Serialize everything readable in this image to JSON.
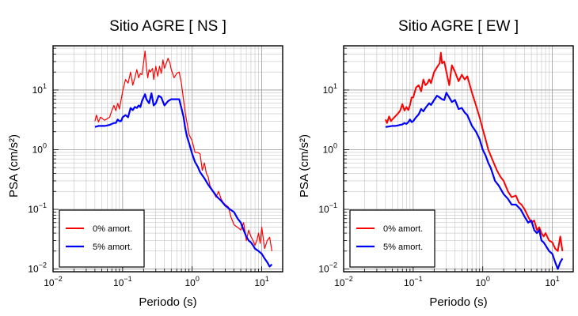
{
  "chart_data": [
    {
      "type": "line",
      "title": "Sitio AGRE [ NS ]",
      "xlabel": "Periodo (s)",
      "ylabel": "PSA (cm/s²)",
      "xscale": "log",
      "yscale": "log",
      "xlim": [
        0.01,
        20
      ],
      "ylim": [
        0.009,
        55
      ],
      "grid": true,
      "legend": "bottom-left",
      "xticks": [
        {
          "v": 0.01,
          "b": "10",
          "e": "−2"
        },
        {
          "v": 0.1,
          "b": "10",
          "e": "−1"
        },
        {
          "v": 1,
          "b": "10",
          "e": "0"
        },
        {
          "v": 10,
          "b": "10",
          "e": "1"
        }
      ],
      "yticks": [
        {
          "v": 0.01,
          "b": "10",
          "e": "−2"
        },
        {
          "v": 0.1,
          "b": "10",
          "e": "−1"
        },
        {
          "v": 1,
          "b": "10",
          "e": "0"
        },
        {
          "v": 10,
          "b": "10",
          "e": "1"
        }
      ],
      "series": [
        {
          "name": "0% amort.",
          "color": "#ff0000",
          "width": 1.2,
          "x": [
            0.04,
            0.042,
            0.045,
            0.048,
            0.05,
            0.055,
            0.06,
            0.065,
            0.07,
            0.075,
            0.08,
            0.085,
            0.09,
            0.095,
            0.1,
            0.11,
            0.12,
            0.13,
            0.14,
            0.15,
            0.16,
            0.17,
            0.18,
            0.19,
            0.2,
            0.21,
            0.22,
            0.23,
            0.24,
            0.25,
            0.27,
            0.28,
            0.3,
            0.32,
            0.34,
            0.36,
            0.38,
            0.4,
            0.42,
            0.45,
            0.48,
            0.5,
            0.55,
            0.6,
            0.65,
            0.7,
            0.75,
            0.8,
            0.9,
            1.0,
            1.1,
            1.2,
            1.3,
            1.4,
            1.5,
            1.6,
            1.7,
            1.8,
            2.0,
            2.2,
            2.4,
            2.6,
            2.8,
            3.0,
            3.3,
            3.6,
            4.0,
            4.5,
            5.0,
            5.5,
            6.0,
            6.5,
            7.0,
            7.5,
            8.0,
            8.5,
            9.0,
            9.5,
            10.0,
            11.0,
            12.0,
            13.0,
            14.0
          ],
          "y": [
            3.0,
            3.8,
            2.9,
            3.5,
            3.4,
            3.1,
            3.3,
            3.5,
            4.5,
            5.5,
            4.5,
            6.0,
            4.8,
            6.8,
            9.5,
            15,
            13,
            20,
            12,
            16,
            22,
            16,
            19,
            18,
            28,
            45,
            24,
            16,
            22,
            20,
            23,
            15,
            25,
            17,
            25,
            19,
            32,
            23,
            27,
            34,
            28,
            22,
            16,
            19,
            20,
            13,
            7.0,
            4.0,
            1.8,
            1.4,
            0.9,
            0.9,
            0.85,
            0.45,
            0.6,
            0.4,
            0.35,
            0.25,
            0.2,
            0.16,
            0.2,
            0.15,
            0.13,
            0.12,
            0.11,
            0.075,
            0.055,
            0.05,
            0.045,
            0.06,
            0.03,
            0.045,
            0.035,
            0.03,
            0.025,
            0.03,
            0.04,
            0.027,
            0.05,
            0.022,
            0.03,
            0.034,
            0.02
          ]
        },
        {
          "name": "5% amort.",
          "color": "#0000ff",
          "width": 2.2,
          "x": [
            0.04,
            0.045,
            0.05,
            0.055,
            0.06,
            0.065,
            0.07,
            0.075,
            0.08,
            0.085,
            0.09,
            0.095,
            0.1,
            0.11,
            0.12,
            0.13,
            0.14,
            0.15,
            0.16,
            0.17,
            0.18,
            0.19,
            0.2,
            0.21,
            0.22,
            0.24,
            0.26,
            0.28,
            0.3,
            0.33,
            0.36,
            0.4,
            0.45,
            0.5,
            0.55,
            0.6,
            0.65,
            0.7,
            0.75,
            0.8,
            0.85,
            0.9,
            1.0,
            1.1,
            1.2,
            1.3,
            1.5,
            1.7,
            2.0,
            2.3,
            2.6,
            3.0,
            3.5,
            4.0,
            4.5,
            5.0,
            5.5,
            6.0,
            6.5,
            7.0,
            7.5,
            8.0,
            9.0,
            10.0,
            11.0,
            12.0,
            13.0,
            14.0
          ],
          "y": [
            2.4,
            2.5,
            2.5,
            2.5,
            2.55,
            2.6,
            2.7,
            2.8,
            2.8,
            3.2,
            3.0,
            3.0,
            3.5,
            3.8,
            3.5,
            5.0,
            4.6,
            5.2,
            5.0,
            5.5,
            5.2,
            6.5,
            7.5,
            8.5,
            7.0,
            6.0,
            8.8,
            5.5,
            6.0,
            8.0,
            7.5,
            5.5,
            6.5,
            7.0,
            7.0,
            7.0,
            7.0,
            5.0,
            3.6,
            2.2,
            1.6,
            1.3,
            0.85,
            0.62,
            0.52,
            0.42,
            0.33,
            0.26,
            0.2,
            0.16,
            0.14,
            0.115,
            0.1,
            0.09,
            0.07,
            0.06,
            0.045,
            0.035,
            0.03,
            0.028,
            0.025,
            0.022,
            0.02,
            0.018,
            0.015,
            0.013,
            0.011,
            0.012
          ]
        }
      ]
    },
    {
      "type": "line",
      "title": "Sitio AGRE [ EW ]",
      "xlabel": "Periodo (s)",
      "ylabel": "PSA (cm/s²)",
      "xscale": "log",
      "yscale": "log",
      "xlim": [
        0.01,
        20
      ],
      "ylim": [
        0.009,
        55
      ],
      "grid": true,
      "legend": "bottom-left",
      "xticks": [
        {
          "v": 0.01,
          "b": "10",
          "e": "−2"
        },
        {
          "v": 0.1,
          "b": "10",
          "e": "−1"
        },
        {
          "v": 1,
          "b": "10",
          "e": "0"
        },
        {
          "v": 10,
          "b": "10",
          "e": "1"
        }
      ],
      "yticks": [
        {
          "v": 0.01,
          "b": "10",
          "e": "−2"
        },
        {
          "v": 0.1,
          "b": "10",
          "e": "−1"
        },
        {
          "v": 1,
          "b": "10",
          "e": "0"
        },
        {
          "v": 10,
          "b": "10",
          "e": "1"
        }
      ],
      "series": [
        {
          "name": "0% amort.",
          "color": "#ff0000",
          "width": 2.0,
          "x": [
            0.04,
            0.042,
            0.045,
            0.048,
            0.05,
            0.055,
            0.06,
            0.065,
            0.07,
            0.075,
            0.08,
            0.085,
            0.09,
            0.095,
            0.1,
            0.11,
            0.12,
            0.13,
            0.14,
            0.15,
            0.16,
            0.17,
            0.18,
            0.2,
            0.22,
            0.24,
            0.25,
            0.26,
            0.28,
            0.3,
            0.33,
            0.36,
            0.4,
            0.45,
            0.5,
            0.55,
            0.6,
            0.7,
            0.8,
            0.9,
            1.0,
            1.1,
            1.2,
            1.4,
            1.6,
            1.8,
            2.0,
            2.3,
            2.6,
            3.0,
            3.3,
            3.6,
            4.0,
            4.5,
            5.0,
            5.5,
            6.0,
            6.5,
            7.0,
            7.5,
            8.0,
            9.0,
            10.0,
            11.0,
            12.0,
            13.0,
            14.0
          ],
          "y": [
            3.2,
            2.8,
            3.6,
            3.0,
            3.2,
            3.6,
            4.0,
            4.5,
            5.8,
            4.5,
            5.2,
            4.6,
            5.6,
            7.5,
            7.5,
            11,
            12,
            9.5,
            15,
            12,
            13,
            15,
            13,
            20,
            24,
            28,
            42,
            28,
            30,
            20,
            12,
            26,
            20,
            14,
            18,
            15,
            17,
            9.0,
            5.5,
            3.5,
            2.2,
            1.5,
            1.0,
            0.65,
            0.45,
            0.35,
            0.3,
            0.2,
            0.16,
            0.17,
            0.13,
            0.12,
            0.1,
            0.075,
            0.06,
            0.065,
            0.045,
            0.05,
            0.04,
            0.035,
            0.04,
            0.03,
            0.028,
            0.022,
            0.02,
            0.035,
            0.02
          ]
        },
        {
          "name": "5% amort.",
          "color": "#0000ff",
          "width": 2.2,
          "x": [
            0.04,
            0.045,
            0.05,
            0.055,
            0.06,
            0.065,
            0.07,
            0.075,
            0.08,
            0.085,
            0.09,
            0.095,
            0.1,
            0.11,
            0.12,
            0.13,
            0.14,
            0.15,
            0.16,
            0.17,
            0.18,
            0.2,
            0.22,
            0.24,
            0.26,
            0.28,
            0.3,
            0.33,
            0.36,
            0.4,
            0.45,
            0.5,
            0.55,
            0.6,
            0.7,
            0.8,
            0.9,
            1.0,
            1.1,
            1.2,
            1.3,
            1.5,
            1.7,
            2.0,
            2.3,
            2.6,
            3.0,
            3.5,
            4.0,
            4.5,
            5.0,
            5.5,
            6.0,
            6.5,
            7.0,
            7.5,
            8.0,
            9.0,
            10.0,
            11.0,
            12.0,
            13.0,
            14.0
          ],
          "y": [
            2.4,
            2.45,
            2.5,
            2.5,
            2.55,
            2.6,
            2.65,
            2.8,
            2.7,
            2.9,
            3.2,
            2.9,
            3.0,
            3.5,
            3.9,
            4.8,
            4.4,
            5.0,
            5.5,
            6.0,
            5.6,
            6.8,
            8.0,
            7.5,
            7.0,
            6.8,
            9.0,
            7.5,
            6.3,
            6.8,
            4.8,
            5.0,
            4.2,
            3.8,
            2.5,
            2.0,
            1.5,
            1.0,
            0.8,
            0.6,
            0.5,
            0.3,
            0.25,
            0.18,
            0.15,
            0.12,
            0.12,
            0.1,
            0.075,
            0.06,
            0.065,
            0.045,
            0.04,
            0.045,
            0.03,
            0.028,
            0.025,
            0.02,
            0.018,
            0.013,
            0.01,
            0.013,
            0.015
          ]
        }
      ]
    }
  ]
}
